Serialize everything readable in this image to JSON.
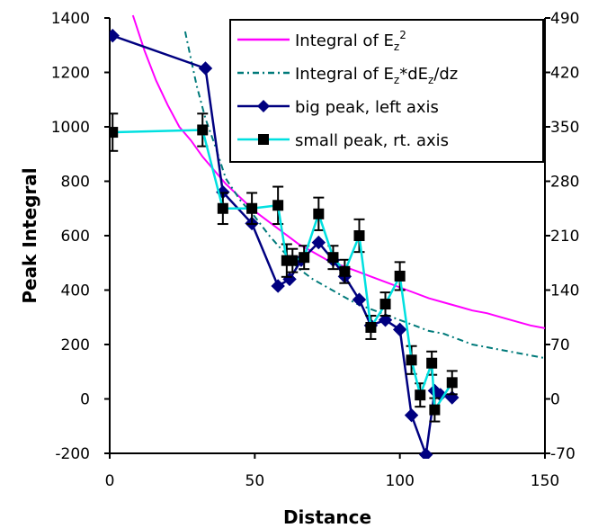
{
  "chart_data": {
    "type": "line",
    "xlabel": "Distance",
    "ylabel": "Peak Integral",
    "xlim": [
      0,
      150
    ],
    "ylim": [
      -200,
      1400
    ],
    "y2lim": [
      -70,
      490
    ],
    "x_ticks": [
      "0",
      "50",
      "100",
      "150"
    ],
    "y_ticks": [
      "-200",
      "0",
      "200",
      "400",
      "600",
      "800",
      "1000",
      "1200",
      "1400"
    ],
    "y2_ticks": [
      "-70",
      "0",
      "70",
      "140",
      "210",
      "280",
      "350",
      "420",
      "490"
    ],
    "grid": false,
    "legend_position": "top-right",
    "series": [
      {
        "name": "Integral of E_z^2",
        "name_main": "Integral of E",
        "name_sub": "z",
        "name_sup": "2",
        "name_tail": "",
        "style": "solid",
        "marker": "none",
        "color": "#ff00ff",
        "axis": "left",
        "x": [
          8,
          12,
          16,
          20,
          24,
          28,
          32,
          36,
          40,
          45,
          50,
          55,
          60,
          65,
          70,
          75,
          80,
          85,
          90,
          95,
          100,
          105,
          110,
          115,
          120,
          125,
          130,
          135,
          140,
          145,
          150
        ],
        "y": [
          1410,
          1280,
          1170,
          1080,
          1000,
          950,
          890,
          840,
          790,
          740,
          690,
          650,
          610,
          570,
          540,
          510,
          490,
          470,
          450,
          430,
          410,
          390,
          370,
          355,
          340,
          325,
          315,
          300,
          285,
          270,
          260
        ]
      },
      {
        "name": "Integral of E_z*dE_z/dz",
        "name_main": "Integral of E",
        "name_sub": "z",
        "name_sup": "",
        "name_tail": "*dE",
        "name_sub2": "z",
        "name_tail2": "/dz",
        "style": "dashed",
        "marker": "none",
        "color": "#007a7a",
        "axis": "left",
        "x": [
          26,
          28,
          30,
          33,
          36,
          40,
          45,
          50,
          55,
          60,
          65,
          70,
          75,
          80,
          85,
          90,
          95,
          100,
          105,
          110,
          115,
          120,
          125,
          130,
          135,
          140,
          145,
          150
        ],
        "y": [
          1350,
          1250,
          1150,
          1030,
          940,
          810,
          730,
          670,
          600,
          540,
          480,
          440,
          410,
          380,
          350,
          330,
          310,
          290,
          270,
          250,
          240,
          220,
          200,
          190,
          180,
          170,
          160,
          150
        ]
      },
      {
        "name": "big peak, left axis",
        "style": "solid",
        "marker": "diamond",
        "color": "#000080",
        "axis": "left",
        "x": [
          1,
          33,
          39,
          49,
          58,
          62,
          66,
          72,
          77,
          81,
          86,
          90,
          95,
          100,
          104,
          109,
          112,
          114,
          118
        ],
        "y": [
          1335,
          1215,
          760,
          645,
          415,
          440,
          510,
          575,
          510,
          450,
          365,
          270,
          290,
          255,
          -60,
          -205,
          30,
          15,
          5
        ]
      },
      {
        "name": "small peak, rt. axis",
        "style": "solid",
        "marker": "square",
        "color": "#00e0e0",
        "axis": "right",
        "x": [
          1,
          32,
          39,
          49,
          58,
          61,
          63,
          67,
          72,
          77,
          81,
          86,
          90,
          95,
          100,
          104,
          107,
          111,
          112,
          118
        ],
        "y": [
          343,
          346,
          245,
          245,
          249,
          178,
          178,
          182,
          238,
          182,
          164,
          210,
          92,
          122,
          158,
          50,
          5,
          46,
          -14,
          21
        ],
        "yerr": [
          24,
          21,
          20,
          20,
          24,
          21,
          15,
          15,
          21,
          15,
          15,
          21,
          15,
          15,
          18,
          18,
          15,
          15,
          15,
          15
        ]
      }
    ]
  }
}
